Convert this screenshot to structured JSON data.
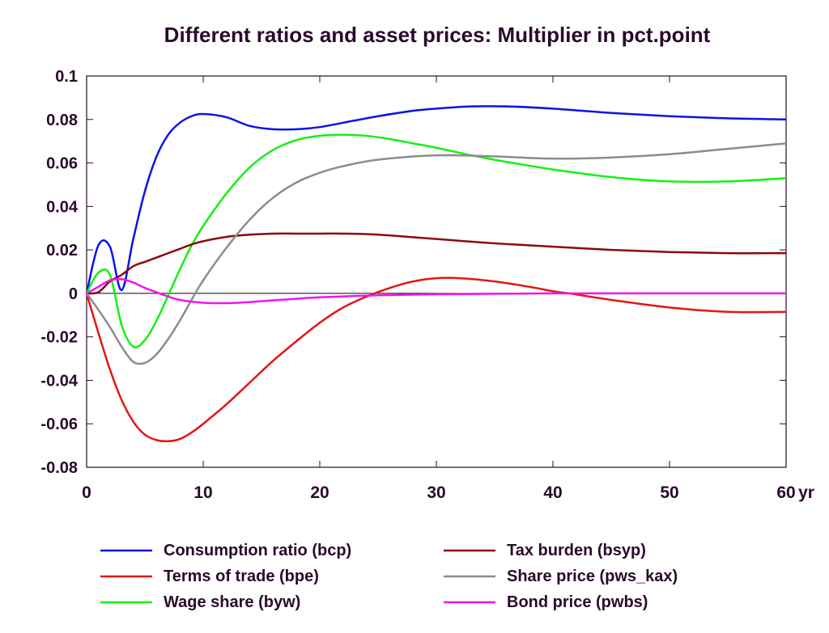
{
  "chart_data": {
    "type": "line",
    "title": "Different ratios and asset prices: Multiplier in pct.point",
    "xlabel": "",
    "ylabel": "",
    "x_unit_label": "yr",
    "xlim": [
      0,
      60
    ],
    "ylim": [
      -0.08,
      0.1
    ],
    "xticks": [
      0,
      10,
      20,
      30,
      40,
      50,
      60
    ],
    "xtick_labels": [
      "0",
      "10",
      "20",
      "30",
      "40",
      "50",
      "60"
    ],
    "yticks": [
      -0.08,
      -0.06,
      -0.04,
      -0.02,
      0,
      0.02,
      0.04,
      0.06,
      0.08,
      0.1
    ],
    "ytick_labels": [
      "-0.08",
      "-0.06",
      "-0.04",
      "-0.02",
      "0",
      "0.02",
      "0.04",
      "0.06",
      "0.08",
      "0.1"
    ],
    "grid": false,
    "zero_line": true,
    "legend_position": "bottom",
    "series": [
      {
        "name": "Consumption ratio (bcp)",
        "color": "#0a14e6",
        "x": [
          0,
          1,
          2,
          3,
          4,
          5,
          6,
          7,
          8,
          9,
          10,
          12,
          14,
          16,
          18,
          20,
          22,
          25,
          28,
          30,
          33,
          36,
          40,
          45,
          50,
          55,
          60
        ],
        "y": [
          0,
          0.022,
          0.0215,
          0.0015,
          0.025,
          0.047,
          0.063,
          0.073,
          0.0785,
          0.0815,
          0.0825,
          0.081,
          0.077,
          0.0755,
          0.0755,
          0.0765,
          0.0785,
          0.0815,
          0.084,
          0.085,
          0.086,
          0.086,
          0.085,
          0.083,
          0.0815,
          0.0805,
          0.08
        ]
      },
      {
        "name": "Terms of trade (bpe)",
        "color": "#e61414",
        "x": [
          0,
          1,
          2,
          3,
          4,
          5,
          6,
          7,
          8,
          9,
          10,
          12,
          14,
          16,
          18,
          20,
          22,
          24,
          26,
          28,
          30,
          32,
          35,
          38,
          40,
          42,
          45,
          50,
          55,
          60
        ],
        "y": [
          0,
          -0.018,
          -0.035,
          -0.049,
          -0.059,
          -0.065,
          -0.0675,
          -0.068,
          -0.067,
          -0.064,
          -0.06,
          -0.051,
          -0.041,
          -0.031,
          -0.022,
          -0.0135,
          -0.0065,
          -0.0015,
          0.0025,
          0.0055,
          0.007,
          0.007,
          0.0055,
          0.003,
          0.001,
          -0.0005,
          -0.003,
          -0.0065,
          -0.0085,
          -0.0085
        ]
      },
      {
        "name": "Wage share (byw)",
        "color": "#14f014",
        "x": [
          0,
          1,
          2,
          3,
          4,
          5,
          6,
          7,
          8,
          9,
          10,
          12,
          14,
          16,
          18,
          20,
          22,
          24,
          26,
          28,
          30,
          33,
          36,
          40,
          45,
          50,
          55,
          60
        ],
        "y": [
          0,
          0.0095,
          0.0085,
          -0.0145,
          -0.0245,
          -0.0215,
          -0.0125,
          -0.001,
          0.011,
          0.022,
          0.031,
          0.046,
          0.058,
          0.066,
          0.0705,
          0.0725,
          0.073,
          0.0725,
          0.071,
          0.069,
          0.067,
          0.0635,
          0.0605,
          0.057,
          0.0535,
          0.0515,
          0.0515,
          0.053
        ]
      },
      {
        "name": "Tax burden (bsyp)",
        "color": "#8c0a0a",
        "x": [
          0,
          1,
          2,
          3,
          4,
          5,
          6,
          7,
          8,
          9,
          10,
          12,
          14,
          16,
          18,
          20,
          22,
          25,
          30,
          35,
          40,
          45,
          50,
          55,
          60
        ],
        "y": [
          0,
          0.0005,
          0.0055,
          0.0085,
          0.0125,
          0.0145,
          0.0165,
          0.0185,
          0.0205,
          0.0225,
          0.024,
          0.026,
          0.027,
          0.0275,
          0.0275,
          0.0275,
          0.0275,
          0.027,
          0.025,
          0.023,
          0.0215,
          0.02,
          0.019,
          0.0185,
          0.0185
        ]
      },
      {
        "name": "Share price (pws_kax)",
        "color": "#8c8c8c",
        "x": [
          0,
          1,
          2,
          3,
          4,
          5,
          6,
          7,
          8,
          9,
          10,
          12,
          14,
          16,
          18,
          20,
          22,
          25,
          30,
          35,
          40,
          45,
          50,
          55,
          60
        ],
        "y": [
          0,
          -0.0075,
          -0.0155,
          -0.0245,
          -0.0315,
          -0.032,
          -0.028,
          -0.021,
          -0.0125,
          -0.003,
          0.006,
          0.021,
          0.034,
          0.044,
          0.051,
          0.0555,
          0.0585,
          0.0615,
          0.0635,
          0.063,
          0.062,
          0.0625,
          0.064,
          0.0665,
          0.069
        ]
      },
      {
        "name": "Bond price (pwbs)",
        "color": "#f014f0",
        "x": [
          0,
          1,
          2,
          3,
          4,
          5,
          6,
          7,
          8,
          9,
          10,
          12,
          14,
          16,
          18,
          20,
          25,
          30,
          35,
          40,
          45,
          50,
          55,
          60
        ],
        "y": [
          0,
          0.003,
          0.006,
          0.0065,
          0.005,
          0.0025,
          0.0005,
          -0.0015,
          -0.003,
          -0.0038,
          -0.0043,
          -0.0045,
          -0.004,
          -0.0032,
          -0.0025,
          -0.0018,
          -0.0009,
          -0.0004,
          -0.0002,
          0,
          0,
          0,
          0,
          0
        ]
      }
    ]
  }
}
